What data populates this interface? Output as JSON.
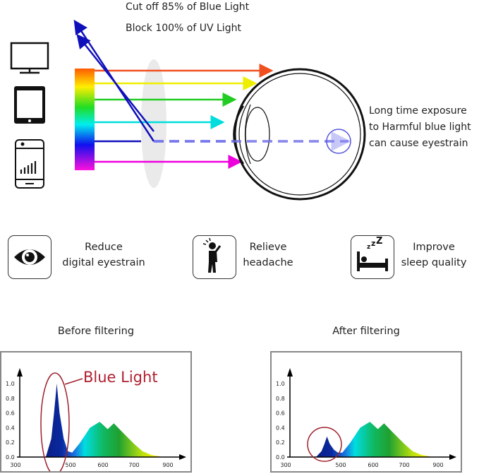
{
  "top": {
    "line1": "Cut off 85% of Blue Light",
    "line2": "Block 100% of UV Light"
  },
  "right_note": {
    "lines": [
      "Long time exposure",
      "to Harmful blue light",
      "can cause eyestrain"
    ]
  },
  "devices": [
    "monitor-icon",
    "tablet-icon",
    "smartphone-icon"
  ],
  "benefits": [
    {
      "icon": "eye-icon",
      "lines": [
        "Reduce",
        "digital eyestrain"
      ]
    },
    {
      "icon": "headache-person-icon",
      "lines": [
        "Relieve",
        "headache"
      ]
    },
    {
      "icon": "sleeping-bed-icon",
      "lines": [
        "Improve",
        "sleep quality"
      ]
    }
  ],
  "colors": {
    "blue_light": "#1a1acc",
    "highlight": "#a0202a",
    "ring": "#5555dd"
  },
  "chart_data": [
    {
      "type": "area",
      "title": "Before filtering",
      "annotation": "Blue Light",
      "x_ticks": [
        "300",
        "500",
        "600",
        "700",
        "900"
      ],
      "y_ticks": [
        "0.0",
        "0.2",
        "0.4",
        "0.6",
        "0.8",
        "1.0"
      ],
      "x": [
        410,
        430,
        440,
        450,
        460,
        475,
        490,
        505,
        530,
        560,
        590,
        615,
        635,
        660,
        700,
        750,
        800,
        870
      ],
      "y": [
        0,
        0.25,
        0.6,
        1.0,
        0.6,
        0.25,
        0.08,
        0.06,
        0.2,
        0.4,
        0.48,
        0.38,
        0.46,
        0.35,
        0.18,
        0.08,
        0.03,
        0
      ]
    },
    {
      "type": "area",
      "title": "After filtering",
      "x_ticks": [
        "300",
        "500",
        "600",
        "700",
        "900"
      ],
      "y_ticks": [
        "0.0",
        "0.2",
        "0.4",
        "0.6",
        "0.8",
        "1.0"
      ],
      "x": [
        410,
        430,
        440,
        450,
        460,
        475,
        490,
        505,
        530,
        560,
        590,
        615,
        635,
        660,
        700,
        750,
        800,
        870
      ],
      "y": [
        0,
        0.08,
        0.17,
        0.28,
        0.18,
        0.1,
        0.06,
        0.06,
        0.2,
        0.4,
        0.48,
        0.38,
        0.46,
        0.35,
        0.18,
        0.08,
        0.03,
        0
      ]
    }
  ]
}
